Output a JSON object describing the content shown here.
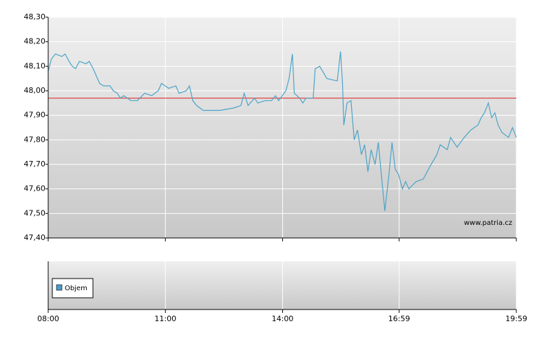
{
  "chart_data": {
    "type": "line",
    "watermark": "www.patria.cz",
    "volume_legend": "Objem",
    "volume_color": "#4a9cc8",
    "grid": true,
    "ylim": [
      47.4,
      48.3
    ],
    "yticks": [
      {
        "value": 47.4,
        "label": "47,40"
      },
      {
        "value": 47.5,
        "label": "47,50"
      },
      {
        "value": 47.6,
        "label": "47,60"
      },
      {
        "value": 47.7,
        "label": "47,70"
      },
      {
        "value": 47.8,
        "label": "47,80"
      },
      {
        "value": 47.9,
        "label": "47,90"
      },
      {
        "value": 48.0,
        "label": "48,00"
      },
      {
        "value": 48.1,
        "label": "48,10"
      },
      {
        "value": 48.2,
        "label": "48,20"
      },
      {
        "value": 48.3,
        "label": "48,30"
      }
    ],
    "xlim": [
      480,
      1199
    ],
    "xticks": [
      {
        "value": 480,
        "label": "08:00"
      },
      {
        "value": 660,
        "label": "11:00"
      },
      {
        "value": 840,
        "label": "14:00"
      },
      {
        "value": 1019,
        "label": "16:59"
      },
      {
        "value": 1199,
        "label": "19:59"
      }
    ],
    "reference_line": {
      "value": 47.97,
      "color": "#e03030"
    },
    "x": [
      480,
      485,
      491,
      501,
      506,
      512,
      517,
      522,
      528,
      538,
      543,
      549,
      554,
      559,
      565,
      575,
      580,
      586,
      591,
      596,
      607,
      617,
      628,
      639,
      649,
      654,
      665,
      676,
      681,
      692,
      697,
      702,
      708,
      718,
      734,
      744,
      765,
      776,
      781,
      787,
      797,
      802,
      813,
      823,
      829,
      834,
      845,
      850,
      855,
      858,
      866,
      871,
      876,
      887,
      890,
      897,
      908,
      924,
      929,
      932,
      934,
      939,
      945,
      950,
      955,
      961,
      966,
      971,
      976,
      982,
      987,
      992,
      997,
      1003,
      1008,
      1013,
      1018,
      1024,
      1029,
      1034,
      1045,
      1056,
      1066,
      1077,
      1082,
      1093,
      1098,
      1108,
      1119,
      1129,
      1140,
      1145,
      1150,
      1156,
      1161,
      1166,
      1171,
      1177,
      1182,
      1187,
      1193,
      1199
    ],
    "series": [
      {
        "color": "#4aa3c8",
        "values": [
          48.08,
          48.13,
          48.15,
          48.14,
          48.15,
          48.12,
          48.1,
          48.09,
          48.12,
          48.11,
          48.12,
          48.09,
          48.06,
          48.03,
          48.02,
          48.02,
          48.0,
          47.99,
          47.97,
          47.98,
          47.96,
          47.96,
          47.99,
          47.98,
          48.0,
          48.03,
          48.01,
          48.02,
          47.99,
          48.0,
          48.02,
          47.96,
          47.94,
          47.92,
          47.92,
          47.92,
          47.93,
          47.94,
          47.99,
          47.94,
          47.97,
          47.95,
          47.96,
          47.96,
          47.98,
          47.96,
          48.0,
          48.05,
          48.15,
          47.99,
          47.97,
          47.95,
          47.97,
          47.97,
          48.09,
          48.1,
          48.05,
          48.04,
          48.16,
          48.03,
          47.86,
          47.95,
          47.96,
          47.8,
          47.84,
          47.74,
          47.78,
          47.67,
          47.76,
          47.7,
          47.79,
          47.65,
          47.51,
          47.65,
          47.79,
          47.68,
          47.66,
          47.6,
          47.63,
          47.6,
          47.63,
          47.64,
          47.69,
          47.74,
          47.78,
          47.76,
          47.81,
          47.77,
          47.81,
          47.84,
          47.86,
          47.89,
          47.91,
          47.95,
          47.89,
          47.91,
          47.86,
          47.83,
          47.82,
          47.81,
          47.85,
          47.81
        ]
      }
    ]
  }
}
